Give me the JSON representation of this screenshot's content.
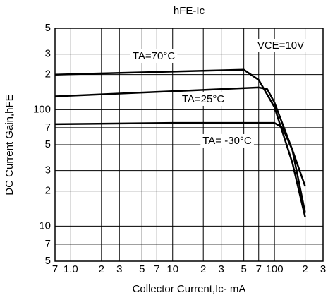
{
  "chart_data": {
    "type": "line",
    "title": "hFE-Ic",
    "x_label": "Collector Current,Ic- mA",
    "y_label": "DC Current Gain,hFE",
    "log_x": true,
    "log_y": true,
    "grid": true,
    "xlim": [
      0.7,
      300
    ],
    "xticks": [
      {
        "value": 0.7,
        "label": "7"
      },
      {
        "value": 1,
        "label": "1.0"
      },
      2,
      3,
      5,
      7,
      10,
      {
        "value": 20,
        "label": "2"
      },
      {
        "value": 30,
        "label": "3"
      },
      {
        "value": 50,
        "label": "5"
      },
      {
        "value": 70,
        "label": "7"
      },
      100,
      {
        "value": 200,
        "label": "2"
      },
      {
        "value": 300,
        "label": "3"
      }
    ],
    "ylim": [
      5,
      500
    ],
    "yticks": [
      5,
      7,
      10,
      {
        "value": 20,
        "label": "2"
      },
      {
        "value": 30,
        "label": "3"
      },
      {
        "value": 50,
        "label": "5"
      },
      {
        "value": 70,
        "label": "7"
      },
      100,
      {
        "value": 200,
        "label": "2"
      },
      {
        "value": 300,
        "label": "3"
      },
      {
        "value": 500,
        "label": "5"
      }
    ],
    "annotations": [
      "VCE=10V"
    ],
    "series": [
      {
        "name": "TA=70°C",
        "color": "#000000",
        "x": [
          0.7,
          50,
          70,
          100,
          150,
          200
        ],
        "values": [
          200,
          220,
          180,
          105,
          35,
          12
        ]
      },
      {
        "name": "TA=25°C",
        "color": "#000000",
        "x": [
          0.7,
          70,
          85,
          100,
          150,
          200
        ],
        "values": [
          130,
          155,
          150,
          115,
          45,
          13
        ]
      },
      {
        "name": "TA= -30°C",
        "color": "#000000",
        "x": [
          0.7,
          10,
          100,
          120,
          150,
          200
        ],
        "values": [
          75,
          77,
          77,
          70,
          45,
          22
        ]
      }
    ]
  }
}
